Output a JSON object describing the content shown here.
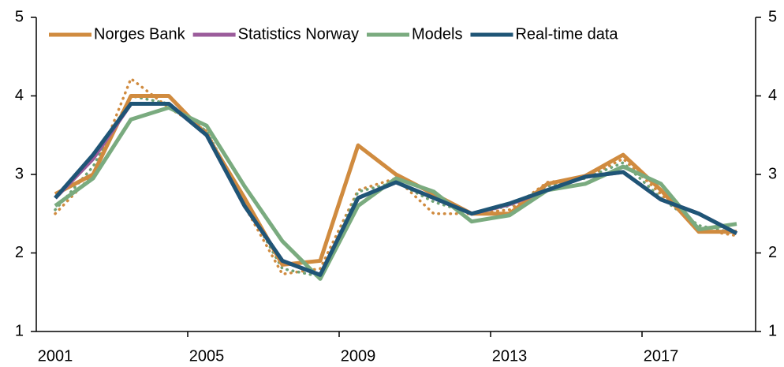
{
  "chart_data": {
    "type": "line",
    "categories": [
      "2001",
      null,
      null,
      null,
      "2005",
      null,
      null,
      null,
      "2009",
      null,
      null,
      null,
      "2013",
      null,
      null,
      null,
      "2017",
      null,
      null
    ],
    "series": [
      {
        "color": "#d08b3f",
        "dash": true,
        "values": [
          2.5,
          3.0,
          4.22,
          3.85,
          3.55,
          2.6,
          1.73,
          1.8,
          2.8,
          2.95,
          2.5,
          2.5,
          2.55,
          2.9,
          2.95,
          3.2,
          2.75,
          2.3,
          2.22
        ]
      },
      {
        "color": "#6fa276",
        "dash": true,
        "values": [
          2.55,
          3.1,
          4.0,
          3.9,
          3.55,
          2.65,
          1.8,
          1.7,
          2.78,
          2.9,
          2.65,
          2.5,
          2.6,
          2.85,
          2.95,
          3.15,
          2.7,
          2.35,
          2.25
        ]
      },
      {
        "name": "Norges Bank",
        "color": "#d08b3f",
        "values": [
          2.75,
          3.0,
          4.0,
          4.0,
          3.5,
          2.7,
          1.85,
          1.9,
          3.37,
          3.0,
          2.75,
          2.5,
          2.5,
          2.88,
          2.98,
          3.25,
          2.8,
          2.27,
          2.27
        ]
      },
      {
        "name": "Statistics Norway",
        "color": "#9b5c9b",
        "values": [
          2.7,
          3.2,
          3.9,
          3.9,
          3.5,
          2.6,
          1.9,
          1.72,
          2.7,
          2.9,
          2.7,
          2.5,
          2.62,
          2.8,
          2.97,
          3.03,
          2.68,
          2.5,
          2.25
        ]
      },
      {
        "name": "Models",
        "color": "#7aab7f",
        "values": [
          2.6,
          2.95,
          3.7,
          3.85,
          3.62,
          2.85,
          2.15,
          1.67,
          2.6,
          2.95,
          2.78,
          2.4,
          2.48,
          2.8,
          2.88,
          3.1,
          2.88,
          2.3,
          2.37
        ]
      },
      {
        "name": "Real-time data",
        "color": "#1f5576",
        "values": [
          2.7,
          3.25,
          3.9,
          3.9,
          3.5,
          2.6,
          1.9,
          1.72,
          2.7,
          2.9,
          2.7,
          2.5,
          2.63,
          2.8,
          2.97,
          3.03,
          2.68,
          2.5,
          2.25
        ]
      }
    ],
    "ylim": [
      1,
      5
    ],
    "yticks": [
      1,
      2,
      3,
      4,
      5
    ],
    "y2lim": [
      1,
      5
    ],
    "y2ticks": [
      1,
      2,
      3,
      4,
      5
    ]
  }
}
